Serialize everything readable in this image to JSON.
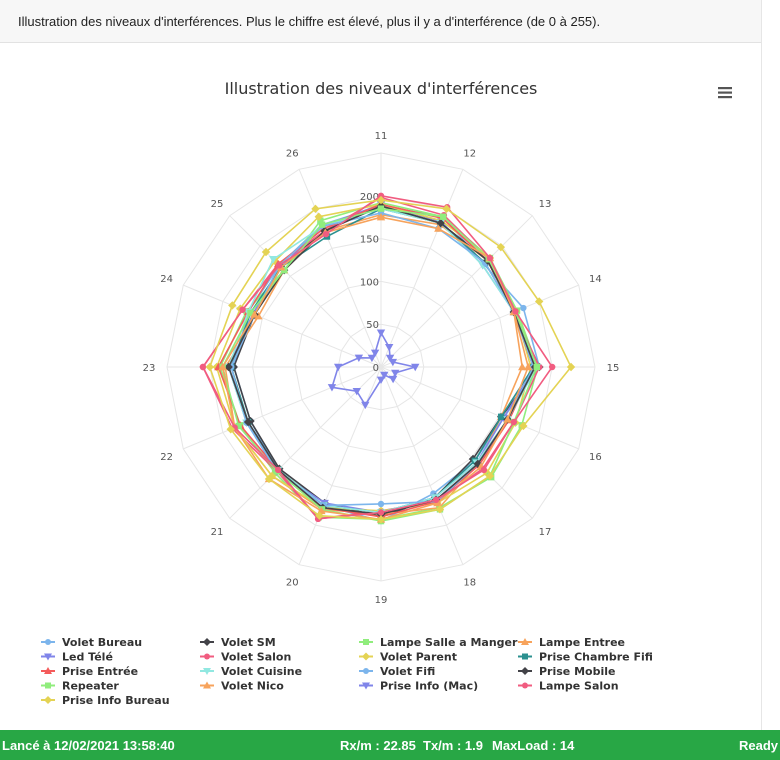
{
  "header": {
    "message": "Illustration des niveaux d'interférences. Plus le chiffre est élevé, plus il y a d'interférence (de 0 à 255)."
  },
  "colors": {
    "status_bg": "#28a745"
  },
  "icons": {
    "menu": "hamburger-menu-icon"
  },
  "status": {
    "started": "Lancé à 12/02/2021 13:58:40",
    "rx": "Rx/m : 22.85",
    "tx": "Tx/m : 1.9",
    "maxload": "MaxLoad : 14",
    "state": "Ready"
  },
  "chart_data": {
    "type": "radar",
    "title": "Illustration des niveaux d'interférences",
    "categories": [
      "11",
      "12",
      "13",
      "14",
      "15",
      "16",
      "17",
      "18",
      "19",
      "20",
      "21",
      "22",
      "23",
      "24",
      "25",
      "26"
    ],
    "radial_ticks": [
      "0",
      "50",
      "100",
      "150",
      "200"
    ],
    "rlim": [
      0,
      250
    ],
    "grid": true,
    "legend": "bottom",
    "series": [
      {
        "name": "Volet Bureau",
        "color": "#7cb5ec",
        "marker": "circle",
        "values": [
          188,
          190,
          170,
          180,
          185,
          155,
          155,
          160,
          180,
          175,
          170,
          165,
          172,
          168,
          168,
          180
        ]
      },
      {
        "name": "Volet SM",
        "color": "#434348",
        "marker": "diamond",
        "values": [
          188,
          182,
          176,
          168,
          185,
          152,
          152,
          165,
          175,
          172,
          168,
          165,
          172,
          160,
          165,
          172
        ]
      },
      {
        "name": "Lampe Salle a Manger",
        "color": "#90ed7d",
        "marker": "square",
        "values": [
          192,
          190,
          180,
          172,
          183,
          178,
          182,
          178,
          178,
          190,
          175,
          178,
          188,
          170,
          160,
          185
        ]
      },
      {
        "name": "Lampe Entree",
        "color": "#f7a35c",
        "marker": "triangle",
        "values": [
          178,
          180,
          176,
          168,
          165,
          152,
          160,
          178,
          172,
          180,
          180,
          185,
          182,
          155,
          160,
          172
        ]
      },
      {
        "name": "Led Télé",
        "color": "#8085e9",
        "marker": "triangle-down",
        "values": [
          190,
          184,
          168,
          168,
          180,
          155,
          158,
          165,
          170,
          172,
          172,
          170,
          178,
          162,
          165,
          178
        ]
      },
      {
        "name": "Volet Salon",
        "color": "#f15c80",
        "marker": "circle",
        "values": [
          198,
          192,
          178,
          168,
          185,
          168,
          168,
          170,
          168,
          192,
          172,
          188,
          208,
          175,
          170,
          172
        ]
      },
      {
        "name": "Volet Parent",
        "color": "#e4d354",
        "marker": "diamond",
        "values": [
          190,
          185,
          180,
          170,
          175,
          170,
          175,
          172,
          168,
          178,
          180,
          185,
          192,
          178,
          175,
          190
        ]
      },
      {
        "name": "Prise Chambre Fifi",
        "color": "#2b908f",
        "marker": "square",
        "values": [
          185,
          182,
          172,
          168,
          178,
          152,
          155,
          165,
          170,
          175,
          170,
          168,
          175,
          165,
          165,
          165
        ]
      },
      {
        "name": "Prise Entrée",
        "color": "#f45b5b",
        "marker": "triangle",
        "values": [
          190,
          188,
          176,
          168,
          178,
          162,
          162,
          170,
          175,
          178,
          170,
          178,
          190,
          168,
          170,
          175
        ]
      },
      {
        "name": "Volet Cuisine",
        "color": "#91e8e1",
        "marker": "triangle-down",
        "values": [
          185,
          182,
          168,
          168,
          182,
          160,
          158,
          165,
          170,
          175,
          170,
          170,
          178,
          168,
          178,
          178
        ]
      },
      {
        "name": "Volet Fifi",
        "color": "#7cb5ec",
        "marker": "circle",
        "values": [
          180,
          175,
          172,
          168,
          178,
          160,
          160,
          170,
          160,
          175,
          172,
          170,
          175,
          160,
          168,
          178
        ]
      },
      {
        "name": "Prise Mobile",
        "color": "#434348",
        "marker": "diamond",
        "values": [
          188,
          182,
          176,
          168,
          180,
          160,
          160,
          168,
          172,
          178,
          170,
          168,
          178,
          160,
          160,
          172
        ]
      },
      {
        "name": "Repeater",
        "color": "#90ed7d",
        "marker": "square",
        "values": [
          185,
          190,
          178,
          170,
          182,
          168,
          180,
          180,
          180,
          180,
          172,
          180,
          185,
          165,
          160,
          180
        ]
      },
      {
        "name": "Volet Nico",
        "color": "#f7a35c",
        "marker": "triangle",
        "values": [
          175,
          175,
          180,
          168,
          172,
          160,
          165,
          172,
          178,
          182,
          185,
          185,
          185,
          160,
          165,
          170
        ]
      },
      {
        "name": "Prise Info (Mac)",
        "color": "#8085e9",
        "marker": "triangle-down",
        "values": [
          40,
          25,
          15,
          15,
          40,
          18,
          20,
          10,
          15,
          48,
          40,
          62,
          50,
          28,
          15,
          18
        ]
      },
      {
        "name": "Lampe Salon",
        "color": "#f15c80",
        "marker": "circle",
        "values": [
          200,
          202,
          180,
          170,
          200,
          168,
          170,
          168,
          170,
          192,
          170,
          185,
          208,
          175,
          168,
          168
        ]
      },
      {
        "name": "Prise Info Bureau",
        "color": "#e4d354",
        "marker": "diamond",
        "values": [
          195,
          200,
          198,
          200,
          222,
          180,
          180,
          180,
          178,
          188,
          185,
          190,
          200,
          188,
          190,
          200
        ]
      }
    ]
  }
}
